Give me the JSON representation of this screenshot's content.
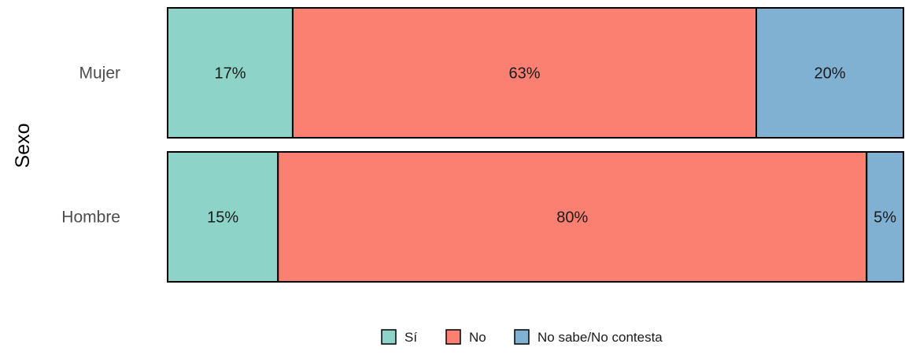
{
  "chart_data": {
    "type": "bar",
    "orientation": "horizontal",
    "stacked": "percent",
    "ylabel": "Sexo",
    "xlabel": "",
    "categories": [
      "Mujer",
      "Hombre"
    ],
    "series": [
      {
        "name": "Sí",
        "color": "#8DD3C7",
        "values": [
          17,
          15
        ],
        "labels": [
          "17%",
          "15%"
        ]
      },
      {
        "name": "No",
        "color": "#FB8072",
        "values": [
          63,
          80
        ],
        "labels": [
          "63%",
          "80%"
        ]
      },
      {
        "name": "No sabe/No contesta",
        "color": "#80B1D3",
        "values": [
          20,
          5
        ],
        "labels": [
          "20%",
          "5%"
        ]
      }
    ],
    "xlim": [
      0,
      100
    ],
    "grid": false,
    "legend_position": "bottom"
  }
}
